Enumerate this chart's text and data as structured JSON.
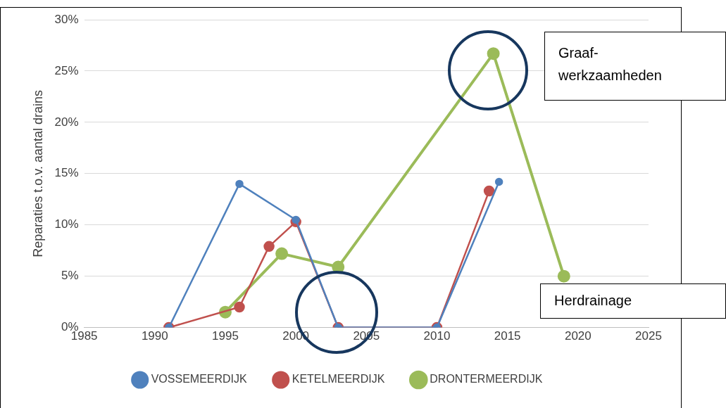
{
  "chart_data": {
    "type": "line",
    "ylabel": "Reparaties t.o.v. aantal drains",
    "series": [
      {
        "name": "VOSSEMEERDIJK",
        "color": "#4f81bd",
        "x": [
          1991,
          1996,
          2000,
          2003,
          2010,
          2014.4
        ],
        "values": [
          0,
          14,
          10.5,
          0,
          0,
          14.2
        ]
      },
      {
        "name": "KETELMEERDIJK",
        "color": "#c0504d",
        "x": [
          1991,
          1996,
          1998.1,
          2000,
          2003,
          2010,
          2013.7
        ],
        "values": [
          0,
          2,
          7.9,
          10.3,
          0,
          0,
          13.3
        ]
      },
      {
        "name": "DRONTERMEERDIJK",
        "color": "#9bbb59",
        "x": [
          1995,
          1999,
          2003,
          2014,
          2019
        ],
        "values": [
          1.5,
          7.2,
          5.9,
          26.7,
          5
        ]
      }
    ],
    "xlim": [
      1985,
      2025
    ],
    "xticks": [
      1985,
      1990,
      1995,
      2000,
      2005,
      2010,
      2015,
      2020,
      2025
    ],
    "ylim": [
      0,
      30
    ],
    "yticks": [
      {
        "value": 0,
        "label": "0%"
      },
      {
        "value": 5,
        "label": "5%"
      },
      {
        "value": 10,
        "label": "10%"
      },
      {
        "value": 15,
        "label": "15%"
      },
      {
        "value": 20,
        "label": "20%"
      },
      {
        "value": 25,
        "label": "25%"
      },
      {
        "value": 30,
        "label": "30%"
      }
    ],
    "grid": "y",
    "legend": "bottom",
    "marker": "circle",
    "line_style": "solid",
    "annotations": [
      "Graaf-werkzaamheden",
      "Herdrainage"
    ]
  }
}
